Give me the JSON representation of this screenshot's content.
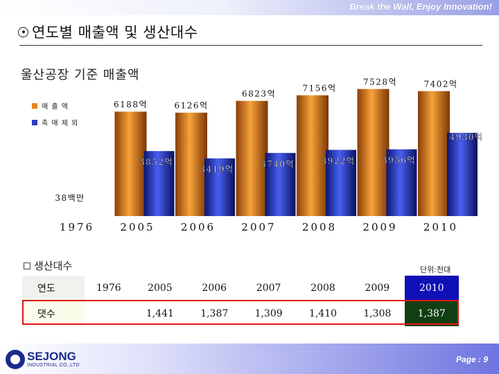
{
  "header": {
    "slogan": "Break the Wall, Enjoy Innovation!",
    "page_title": "연도별 매출액 및 생산대수"
  },
  "chart_heading": "울산공장 기준 매출액",
  "chart_data": {
    "type": "bar",
    "title": "울산공장 기준 매출액",
    "categories": [
      "1976",
      "2005",
      "2006",
      "2007",
      "2008",
      "2009",
      "2010"
    ],
    "series": [
      {
        "name": "매 출 액",
        "color": "#e8861c",
        "values": [
          0.0038,
          6188,
          6126,
          6823,
          7156,
          7528,
          7402
        ],
        "labels": [
          "38백만",
          "6188억",
          "6126억",
          "6823억",
          "7156억",
          "7528억",
          "7402억"
        ]
      },
      {
        "name": "축 매 제 외",
        "color": "#2a3fc0",
        "values": [
          null,
          3852,
          3419,
          3740,
          3922,
          3956,
          4930
        ],
        "labels": [
          "",
          "3852억",
          "3419억",
          "3740억",
          "3922억",
          "3956억",
          "4930억"
        ]
      }
    ],
    "ylim": [
      0,
      8000
    ],
    "legend": "top-left",
    "grid": false
  },
  "production": {
    "heading": "생산대수",
    "unit": "단위:천대",
    "year_label": "연도",
    "count_label": "댓수",
    "years": [
      "1976",
      "2005",
      "2006",
      "2007",
      "2008",
      "2009",
      "2010"
    ],
    "counts": [
      "",
      "1,441",
      "1,387",
      "1,309",
      "1,410",
      "1,308",
      "1,387"
    ],
    "highlight_color_year": "#1010b8",
    "highlight_color_count": "#123f12",
    "box_color": "#e01818"
  },
  "footer": {
    "logo_main": "SEJONG",
    "logo_sub": "INDUSTRIAL CO.,LTD",
    "page": "Page : 9"
  }
}
